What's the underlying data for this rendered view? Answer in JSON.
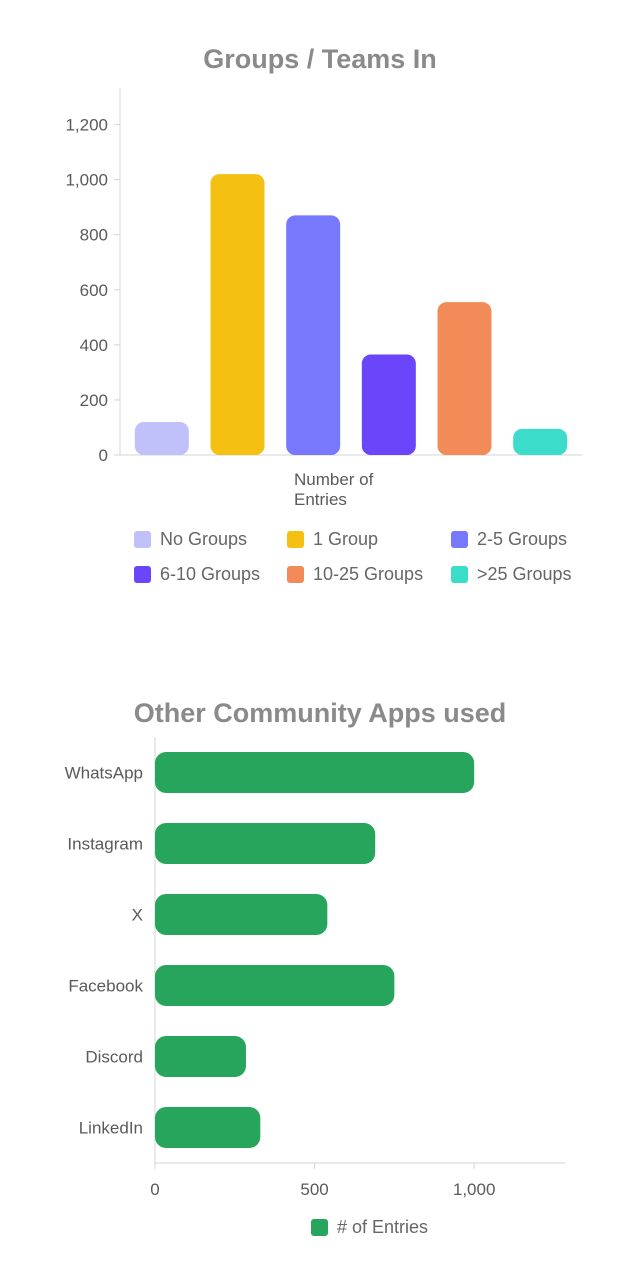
{
  "chart_data": [
    {
      "type": "bar",
      "title": "Groups / Teams In",
      "xlabel": "Number of Entries",
      "ylabel": "",
      "ylim": [
        0,
        1300
      ],
      "yticks": [
        0,
        200,
        400,
        600,
        800,
        1000,
        1200
      ],
      "ytick_labels": [
        "0",
        "200",
        "400",
        "600",
        "800",
        "1,000",
        "1,200"
      ],
      "categories": [
        "No Groups",
        "1 Group",
        "2-5 Groups",
        "6-10 Groups",
        "10-25 Groups",
        ">25 Groups"
      ],
      "values": [
        120,
        1020,
        870,
        365,
        555,
        95
      ],
      "colors": [
        "#c0c0fb",
        "#f4c012",
        "#7878fd",
        "#6a45fa",
        "#f38b59",
        "#3cdccb"
      ],
      "legend": [
        "No Groups",
        "1 Group",
        "2-5 Groups",
        "6-10 Groups",
        "10-25 Groups",
        ">25 Groups"
      ],
      "legend_position": "bottom"
    },
    {
      "type": "bar",
      "orientation": "horizontal",
      "title": "Other Community Apps used",
      "xlabel": "",
      "ylabel": "",
      "xlim": [
        0,
        1280
      ],
      "xticks": [
        0,
        500,
        1000
      ],
      "xtick_labels": [
        "0",
        "500",
        "1,000"
      ],
      "categories": [
        "WhatsApp",
        "Instagram",
        "X",
        "Facebook",
        "Discord",
        "LinkedIn"
      ],
      "series": [
        {
          "name": "# of Entries",
          "values": [
            1000,
            690,
            540,
            750,
            285,
            330
          ],
          "color": "#27a55c"
        }
      ],
      "legend_position": "bottom"
    }
  ]
}
